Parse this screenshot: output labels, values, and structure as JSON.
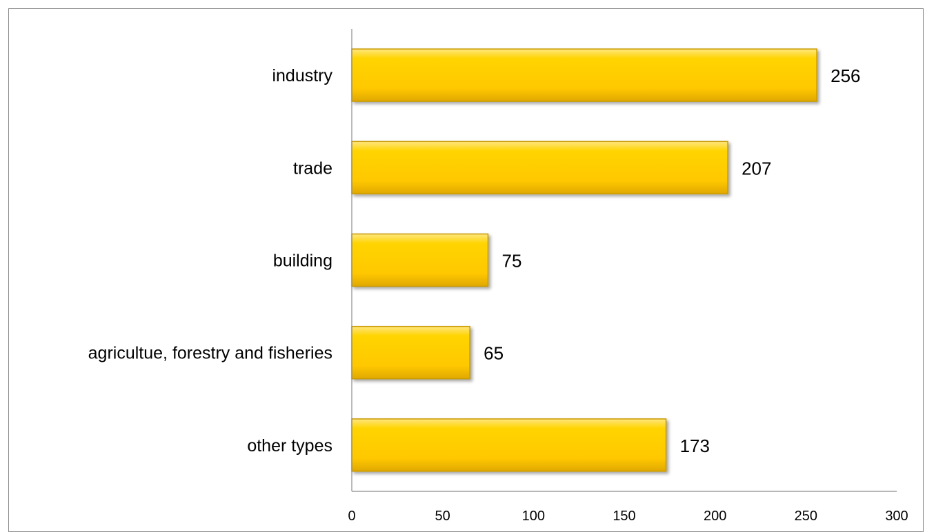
{
  "chart_data": {
    "type": "bar",
    "orientation": "horizontal",
    "categories": [
      "industry",
      "trade",
      "building",
      "agricultue, forestry and fisheries",
      "other types"
    ],
    "values": [
      256,
      207,
      75,
      65,
      173
    ],
    "title": "",
    "xlabel": "",
    "ylabel": "",
    "xlim": [
      0,
      300
    ],
    "xticks": [
      0,
      50,
      100,
      150,
      200,
      250,
      300
    ],
    "grid": false,
    "legend": "none",
    "bar_color": "#FFCC00",
    "bar_edge_color": "#C89A00"
  }
}
